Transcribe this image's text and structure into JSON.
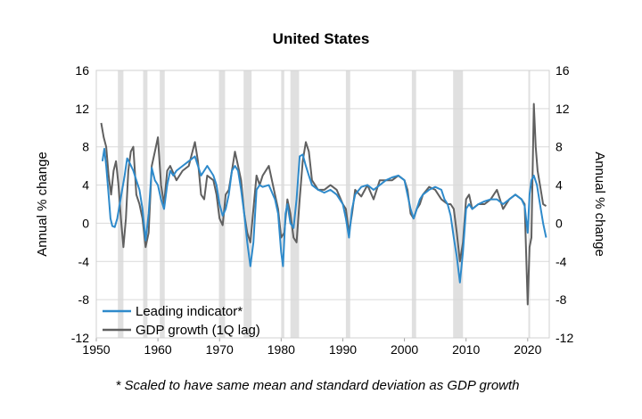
{
  "chart_data": {
    "type": "line",
    "title": "United States",
    "ylabel_left": "Annual % change",
    "ylabel_right": "Annual % change",
    "footnote": "* Scaled to have same mean and standard deviation as GDP growth",
    "xlim": [
      1950,
      2023.5
    ],
    "ylim": [
      -12,
      16
    ],
    "x_ticks": [
      1950,
      1960,
      1970,
      1980,
      1990,
      2000,
      2010,
      2020
    ],
    "y_ticks": [
      -12,
      -8,
      -4,
      0,
      4,
      8,
      12,
      16
    ],
    "grid": true,
    "legend_position": "bottom-left",
    "colors": {
      "leading": "#2E8ACB",
      "gdp": "#606060",
      "recession": "#E0E0E0",
      "grid": "#D9D9D9"
    },
    "recessions": [
      [
        1953.5,
        1954.4
      ],
      [
        1957.6,
        1958.3
      ],
      [
        1960.3,
        1961.1
      ],
      [
        1969.9,
        1970.9
      ],
      [
        1973.9,
        1975.2
      ],
      [
        1980.0,
        1980.5
      ],
      [
        1981.5,
        1982.9
      ],
      [
        1990.5,
        1991.2
      ],
      [
        2001.2,
        2001.9
      ],
      [
        2007.9,
        2009.5
      ],
      [
        2020.1,
        2020.4
      ]
    ],
    "series": [
      {
        "name": "Leading indicator*",
        "color": "#2E8ACB",
        "x": [
          1951.0,
          1951.3,
          1951.6,
          1952.0,
          1952.3,
          1952.6,
          1953.0,
          1953.4,
          1953.8,
          1954.2,
          1954.6,
          1955.0,
          1955.5,
          1956.0,
          1956.5,
          1957.0,
          1957.5,
          1958.0,
          1958.5,
          1959.0,
          1959.5,
          1960.0,
          1960.5,
          1961.0,
          1961.5,
          1962.0,
          1962.5,
          1963.0,
          1964.0,
          1965.0,
          1966.0,
          1966.5,
          1967.0,
          1967.5,
          1968.0,
          1968.5,
          1969.0,
          1969.5,
          1970.0,
          1970.5,
          1971.0,
          1971.5,
          1972.0,
          1972.5,
          1973.0,
          1973.5,
          1974.0,
          1974.5,
          1975.0,
          1975.5,
          1976.0,
          1976.5,
          1977.0,
          1978.0,
          1979.0,
          1979.5,
          1980.0,
          1980.3,
          1980.7,
          1981.0,
          1981.5,
          1982.0,
          1982.5,
          1983.0,
          1983.5,
          1984.0,
          1984.5,
          1985.0,
          1986.0,
          1987.0,
          1988.0,
          1989.0,
          1989.5,
          1990.0,
          1990.5,
          1991.0,
          1991.5,
          1992.0,
          1993.0,
          1994.0,
          1995.0,
          1996.0,
          1997.0,
          1998.0,
          1999.0,
          2000.0,
          2000.5,
          2001.0,
          2001.5,
          2002.0,
          2002.5,
          2003.0,
          2004.0,
          2005.0,
          2006.0,
          2006.5,
          2007.0,
          2007.5,
          2008.0,
          2008.5,
          2009.0,
          2009.5,
          2010.0,
          2010.5,
          2011.0,
          2012.0,
          2013.0,
          2014.0,
          2015.0,
          2016.0,
          2017.0,
          2018.0,
          2019.0,
          2019.5,
          2020.0,
          2020.3,
          2020.6,
          2021.0,
          2021.5,
          2022.0,
          2022.5,
          2023.0
        ],
        "y": [
          6.5,
          7.8,
          6.0,
          3.0,
          0.5,
          -0.3,
          -0.4,
          0.5,
          2.0,
          3.5,
          5.0,
          6.8,
          6.2,
          5.5,
          4.5,
          3.5,
          1.5,
          -1.8,
          1.0,
          5.8,
          4.5,
          4.0,
          2.5,
          1.5,
          4.0,
          5.5,
          5.0,
          5.5,
          6.0,
          6.5,
          7.0,
          6.0,
          5.0,
          5.5,
          6.0,
          5.5,
          5.0,
          4.0,
          2.0,
          0.8,
          1.5,
          3.0,
          5.5,
          6.0,
          5.5,
          3.5,
          1.0,
          -2.0,
          -4.5,
          -2.0,
          3.5,
          4.0,
          3.8,
          4.0,
          2.5,
          1.0,
          -3.0,
          -4.5,
          1.0,
          2.0,
          0.0,
          -0.5,
          2.5,
          7.0,
          7.2,
          6.0,
          5.0,
          4.0,
          3.5,
          3.2,
          3.5,
          3.0,
          2.5,
          2.0,
          0.5,
          -1.5,
          1.5,
          3.0,
          3.8,
          4.0,
          3.5,
          4.0,
          4.5,
          4.8,
          5.0,
          4.5,
          3.0,
          1.5,
          0.5,
          1.5,
          2.5,
          3.0,
          3.5,
          3.8,
          3.5,
          2.5,
          2.0,
          0.8,
          -1.5,
          -3.5,
          -6.2,
          -3.0,
          1.5,
          2.0,
          1.5,
          2.0,
          2.3,
          2.5,
          2.5,
          2.0,
          2.5,
          3.0,
          2.5,
          1.8,
          -1.0,
          3.0,
          4.5,
          5.0,
          4.0,
          2.0,
          0.0,
          -1.5
        ]
      },
      {
        "name": "GDP growth (1Q lag)",
        "color": "#606060",
        "x": [
          1950.8,
          1951.2,
          1951.6,
          1952.0,
          1952.4,
          1952.8,
          1953.2,
          1953.6,
          1954.0,
          1954.4,
          1954.8,
          1955.2,
          1955.6,
          1956.0,
          1956.5,
          1957.0,
          1957.5,
          1958.0,
          1958.5,
          1959.0,
          1959.5,
          1960.0,
          1960.5,
          1961.0,
          1961.5,
          1962.0,
          1963.0,
          1964.0,
          1965.0,
          1966.0,
          1966.5,
          1967.0,
          1967.5,
          1968.0,
          1969.0,
          1969.5,
          1970.0,
          1970.5,
          1971.0,
          1971.5,
          1972.0,
          1972.5,
          1973.0,
          1973.5,
          1974.0,
          1974.5,
          1975.0,
          1975.5,
          1976.0,
          1976.5,
          1977.0,
          1978.0,
          1979.0,
          1979.5,
          1980.0,
          1980.5,
          1981.0,
          1981.5,
          1982.0,
          1982.5,
          1983.0,
          1983.5,
          1984.0,
          1984.5,
          1985.0,
          1986.0,
          1987.0,
          1988.0,
          1989.0,
          1990.0,
          1990.5,
          1991.0,
          1991.5,
          1992.0,
          1993.0,
          1994.0,
          1995.0,
          1996.0,
          1997.0,
          1998.0,
          1999.0,
          2000.0,
          2000.5,
          2001.0,
          2001.5,
          2002.0,
          2002.5,
          2003.0,
          2004.0,
          2005.0,
          2006.0,
          2007.0,
          2007.5,
          2008.0,
          2008.5,
          2009.0,
          2009.5,
          2010.0,
          2010.5,
          2011.0,
          2012.0,
          2013.0,
          2014.0,
          2015.0,
          2016.0,
          2017.0,
          2018.0,
          2019.0,
          2019.5,
          2020.0,
          2020.3,
          2020.6,
          2021.0,
          2021.3,
          2021.6,
          2022.0,
          2022.5,
          2023.0
        ],
        "y": [
          10.5,
          9.0,
          8.0,
          5.0,
          3.0,
          5.5,
          6.5,
          4.0,
          0.5,
          -2.5,
          0.5,
          5.5,
          7.5,
          8.0,
          3.0,
          2.0,
          0.5,
          -2.5,
          -1.0,
          6.0,
          7.5,
          9.0,
          4.0,
          2.0,
          5.5,
          6.0,
          4.5,
          5.5,
          6.0,
          8.5,
          6.5,
          3.0,
          2.5,
          5.0,
          4.5,
          3.0,
          0.5,
          -0.2,
          3.0,
          3.5,
          5.5,
          7.5,
          6.0,
          4.5,
          1.0,
          -1.0,
          -2.0,
          1.5,
          5.0,
          4.0,
          5.0,
          6.0,
          3.0,
          1.5,
          -1.5,
          -1.0,
          2.5,
          1.0,
          -1.5,
          -2.0,
          2.5,
          6.5,
          8.5,
          7.5,
          4.5,
          3.5,
          3.5,
          4.0,
          3.5,
          2.0,
          1.5,
          -1.0,
          1.0,
          3.5,
          2.8,
          4.0,
          2.5,
          4.5,
          4.5,
          4.5,
          5.0,
          4.5,
          3.5,
          1.0,
          0.5,
          1.5,
          2.0,
          3.0,
          3.8,
          3.5,
          2.5,
          2.0,
          2.0,
          1.5,
          -1.0,
          -4.0,
          -2.0,
          2.5,
          3.0,
          1.5,
          2.0,
          2.0,
          2.5,
          3.5,
          1.5,
          2.5,
          3.0,
          2.5,
          2.0,
          -8.5,
          -2.5,
          -1.5,
          12.5,
          8.0,
          5.5,
          4.0,
          2.0,
          1.8
        ]
      }
    ]
  }
}
